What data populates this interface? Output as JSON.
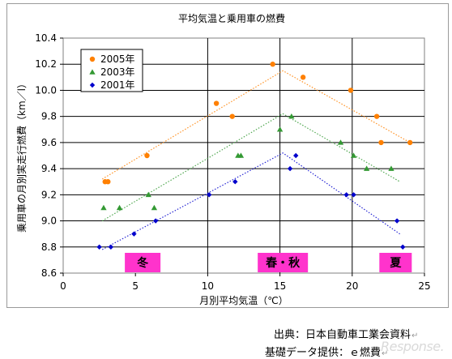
{
  "chart_data": {
    "type": "scatter",
    "title": "平均気温と乗用車の燃費",
    "xlabel": "月別平均気温（℃）",
    "ylabel": "乗用車の月別実走行燃費（km／l）",
    "xlim": [
      0,
      25
    ],
    "ylim": [
      8.6,
      10.4
    ],
    "xticks": [
      "0",
      "5",
      "10",
      "15",
      "20",
      "25"
    ],
    "yticks": [
      "8.6",
      "8.8",
      "9.0",
      "9.2",
      "9.4",
      "9.6",
      "9.8",
      "10.0",
      "10.2",
      "10.4"
    ],
    "grid": {
      "y": true,
      "x_lines": [
        10,
        15,
        20
      ]
    },
    "legend": {
      "position": "top-left"
    },
    "series": [
      {
        "name": "2005年",
        "color": "#ff8000",
        "marker": "circle",
        "points": [
          [
            2.9,
            9.3
          ],
          [
            3.1,
            9.3
          ],
          [
            5.8,
            9.5
          ],
          [
            10.6,
            9.9
          ],
          [
            11.7,
            9.8
          ],
          [
            14.5,
            10.2
          ],
          [
            16.6,
            10.1
          ],
          [
            19.9,
            10.0
          ],
          [
            21.7,
            9.8
          ],
          [
            22.0,
            9.6
          ],
          [
            24.0,
            9.6
          ]
        ],
        "trend": [
          [
            2.7,
            9.32
          ],
          [
            15.2,
            10.15
          ],
          [
            24.0,
            9.6
          ]
        ]
      },
      {
        "name": "2003年",
        "color": "#339933",
        "marker": "triangle",
        "points": [
          [
            2.8,
            9.1
          ],
          [
            3.9,
            9.1
          ],
          [
            5.9,
            9.2
          ],
          [
            6.3,
            9.1
          ],
          [
            12.1,
            9.5
          ],
          [
            12.3,
            9.5
          ],
          [
            15.0,
            9.7
          ],
          [
            15.8,
            9.8
          ],
          [
            19.2,
            9.6
          ],
          [
            20.1,
            9.5
          ],
          [
            21.0,
            9.4
          ],
          [
            22.7,
            9.4
          ]
        ],
        "trend": [
          [
            2.7,
            9.0
          ],
          [
            15.2,
            9.82
          ],
          [
            23.3,
            9.3
          ]
        ]
      },
      {
        "name": "2001年",
        "color": "#0000cc",
        "marker": "diamond",
        "points": [
          [
            2.5,
            8.8
          ],
          [
            3.3,
            8.8
          ],
          [
            4.9,
            8.9
          ],
          [
            6.4,
            9.0
          ],
          [
            10.1,
            9.2
          ],
          [
            11.9,
            9.3
          ],
          [
            15.7,
            9.4
          ],
          [
            16.1,
            9.5
          ],
          [
            19.6,
            9.2
          ],
          [
            20.1,
            9.2
          ],
          [
            23.1,
            9.0
          ],
          [
            23.5,
            8.8
          ]
        ],
        "trend": [
          [
            2.7,
            8.78
          ],
          [
            15.2,
            9.52
          ],
          [
            23.3,
            8.9
          ]
        ]
      }
    ],
    "season_labels": [
      {
        "text": "冬",
        "x_center": 5.5
      },
      {
        "text": "春・秋",
        "x_center": 15.2
      },
      {
        "text": "夏",
        "x_center": 23.0
      }
    ],
    "season_label_color": "#ff33cc"
  },
  "footer": {
    "source": "出典：日本自動車工業会資料",
    "provider": "基礎データ提供：ｅ燃費"
  }
}
